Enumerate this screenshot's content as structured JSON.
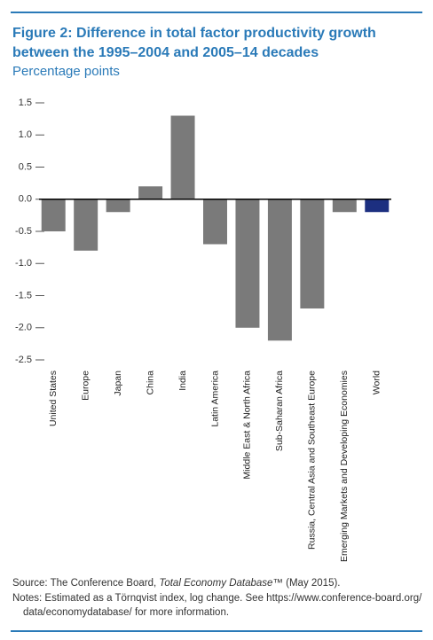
{
  "chart_data": {
    "type": "bar",
    "title_lines": [
      "Figure 2: Difference in total factor productivity growth",
      "between the 1995–2004 and 2005–14 decades"
    ],
    "subtitle": "Percentage points",
    "categories": [
      "United States",
      "Europe",
      "Japan",
      "China",
      "India",
      "Latin America",
      "Middle East & North Africa",
      "Sub-Saharan Africa",
      "Russia, Central Asia and Southeast Europe",
      "Emerging Markets and Developing Economies",
      "World"
    ],
    "values": [
      -0.5,
      -0.8,
      -0.2,
      0.2,
      1.3,
      -0.7,
      -2.0,
      -2.2,
      -1.7,
      -0.2,
      -0.2
    ],
    "colors": [
      "#7a7a7a",
      "#7a7a7a",
      "#7a7a7a",
      "#7a7a7a",
      "#7a7a7a",
      "#7a7a7a",
      "#7a7a7a",
      "#7a7a7a",
      "#7a7a7a",
      "#7a7a7a",
      "#1c2f80"
    ],
    "ylim": [
      -2.5,
      1.5
    ],
    "yticks": [
      1.5,
      {
        "value": 1,
        "label": "1.0"
      },
      {
        "value": 0.5,
        "label": "0.5"
      },
      {
        "value": 0,
        "label": "0.0"
      },
      -0.5,
      {
        "value": -1,
        "label": "-1.0"
      },
      -1.5,
      {
        "value": -2,
        "label": "-2.0"
      },
      -2.5
    ],
    "grid": false
  },
  "source": {
    "prefix": "Source: The Conference Board, ",
    "italic": "Total Economy Database",
    "suffix": "™ (May 2015)."
  },
  "notes": [
    "Notes: Estimated as a Törnqvist index, log change. See https://www.conference-board.org/",
    "data/economydatabase/ for more information."
  ]
}
